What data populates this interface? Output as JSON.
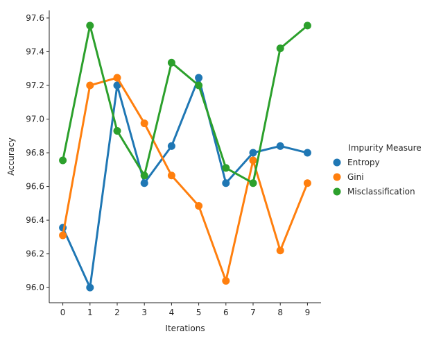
{
  "chart_data": {
    "type": "line",
    "xlabel": "Iterations",
    "ylabel": "Accuracy",
    "x": [
      0,
      1,
      2,
      3,
      4,
      5,
      6,
      7,
      8,
      9
    ],
    "ylim": [
      95.91,
      97.645
    ],
    "yticks": [
      96.0,
      96.2,
      96.4,
      96.6,
      96.8,
      97.0,
      97.2,
      97.4,
      97.6
    ],
    "ytick_labels": [
      "96.0",
      "96.2",
      "96.4",
      "96.6",
      "96.8",
      "97.0",
      "97.2",
      "97.4",
      "97.6"
    ],
    "grid": false,
    "legend": {
      "title": "Impurity Measure",
      "placement": "right, outside plot"
    },
    "series": [
      {
        "name": "Entropy",
        "color": "#1f77b4",
        "values": [
          96.355,
          96.0,
          97.2,
          96.62,
          96.84,
          97.245,
          96.62,
          96.8,
          96.84,
          96.8
        ]
      },
      {
        "name": "Gini",
        "color": "#ff7f0e",
        "values": [
          96.31,
          97.2,
          97.245,
          96.975,
          96.665,
          96.485,
          96.04,
          96.755,
          96.22,
          96.62
        ]
      },
      {
        "name": "Misclassification",
        "color": "#2ca02c",
        "values": [
          96.755,
          97.555,
          96.93,
          96.665,
          97.335,
          97.2,
          96.71,
          96.62,
          97.42,
          97.555
        ]
      }
    ]
  }
}
